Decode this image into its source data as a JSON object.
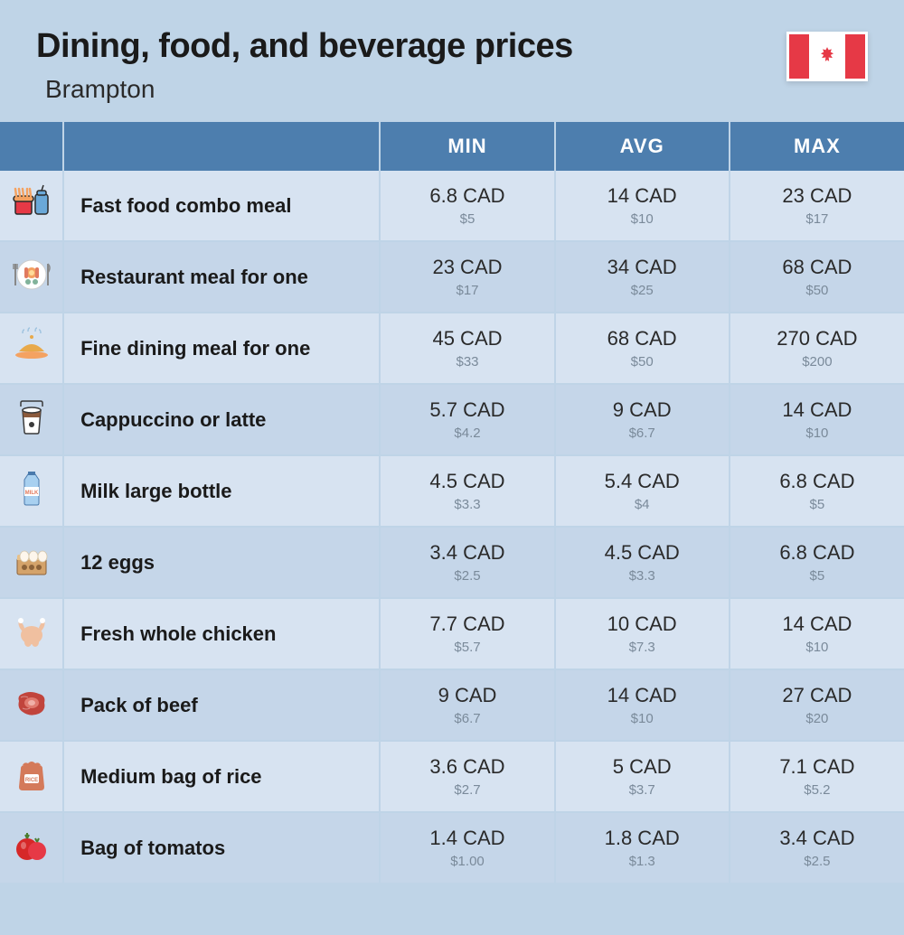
{
  "header": {
    "title": "Dining, food, and beverage prices",
    "subtitle": "Brampton",
    "flag_red": "#e63946",
    "flag_white": "#ffffff"
  },
  "columns": {
    "min": "MIN",
    "avg": "AVG",
    "max": "MAX"
  },
  "colors": {
    "header_bg": "#4d7eae",
    "row_even": "#d7e3f1",
    "row_odd": "#c5d6e9",
    "page_bg": "#bfd4e7",
    "text_main": "#2a2a2a",
    "text_sub": "#7a8a9a"
  },
  "rows": [
    {
      "icon": "fastfood",
      "label": "Fast food combo meal",
      "min_cad": "6.8 CAD",
      "min_usd": "$5",
      "avg_cad": "14 CAD",
      "avg_usd": "$10",
      "max_cad": "23 CAD",
      "max_usd": "$17"
    },
    {
      "icon": "restaurant",
      "label": "Restaurant meal for one",
      "min_cad": "23 CAD",
      "min_usd": "$17",
      "avg_cad": "34 CAD",
      "avg_usd": "$25",
      "max_cad": "68 CAD",
      "max_usd": "$50"
    },
    {
      "icon": "finedining",
      "label": "Fine dining meal for one",
      "min_cad": "45 CAD",
      "min_usd": "$33",
      "avg_cad": "68 CAD",
      "avg_usd": "$50",
      "max_cad": "270 CAD",
      "max_usd": "$200"
    },
    {
      "icon": "coffee",
      "label": "Cappuccino or latte",
      "min_cad": "5.7 CAD",
      "min_usd": "$4.2",
      "avg_cad": "9 CAD",
      "avg_usd": "$6.7",
      "max_cad": "14 CAD",
      "max_usd": "$10"
    },
    {
      "icon": "milk",
      "label": "Milk large bottle",
      "min_cad": "4.5 CAD",
      "min_usd": "$3.3",
      "avg_cad": "5.4 CAD",
      "avg_usd": "$4",
      "max_cad": "6.8 CAD",
      "max_usd": "$5"
    },
    {
      "icon": "eggs",
      "label": "12 eggs",
      "min_cad": "3.4 CAD",
      "min_usd": "$2.5",
      "avg_cad": "4.5 CAD",
      "avg_usd": "$3.3",
      "max_cad": "6.8 CAD",
      "max_usd": "$5"
    },
    {
      "icon": "chicken",
      "label": "Fresh whole chicken",
      "min_cad": "7.7 CAD",
      "min_usd": "$5.7",
      "avg_cad": "10 CAD",
      "avg_usd": "$7.3",
      "max_cad": "14 CAD",
      "max_usd": "$10"
    },
    {
      "icon": "beef",
      "label": "Pack of beef",
      "min_cad": "9 CAD",
      "min_usd": "$6.7",
      "avg_cad": "14 CAD",
      "avg_usd": "$10",
      "max_cad": "27 CAD",
      "max_usd": "$20"
    },
    {
      "icon": "rice",
      "label": "Medium bag of rice",
      "min_cad": "3.6 CAD",
      "min_usd": "$2.7",
      "avg_cad": "5 CAD",
      "avg_usd": "$3.7",
      "max_cad": "7.1 CAD",
      "max_usd": "$5.2"
    },
    {
      "icon": "tomato",
      "label": "Bag of tomatos",
      "min_cad": "1.4 CAD",
      "min_usd": "$1.00",
      "avg_cad": "1.8 CAD",
      "avg_usd": "$1.3",
      "max_cad": "3.4 CAD",
      "max_usd": "$2.5"
    }
  ]
}
